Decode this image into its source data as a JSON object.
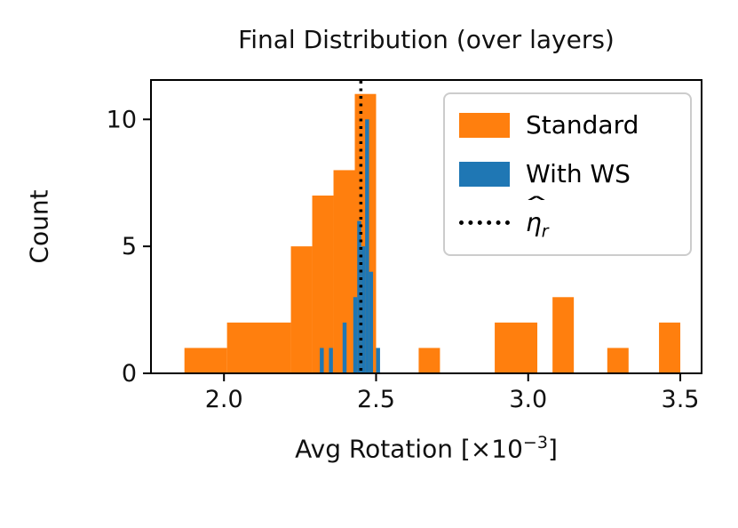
{
  "chart_data": {
    "type": "histogram",
    "title": "Final Distribution (over layers)",
    "ylabel": "Count",
    "xlabel": {
      "full": "Avg Rotation [×10⁻³]",
      "pre": "Avg Rotation [×10",
      "sup": "−3",
      "post": "]"
    },
    "xlim": [
      1.76,
      3.57
    ],
    "ylim": [
      0,
      11.55
    ],
    "x_ticks": [
      2.0,
      2.5,
      3.0,
      3.5
    ],
    "x_tick_labels": [
      "2.0",
      "2.5",
      "3.0",
      "3.5"
    ],
    "y_ticks": [
      0,
      5,
      10
    ],
    "y_tick_labels": [
      "0",
      "5",
      "10"
    ],
    "grid": false,
    "legend_position": "upper right",
    "series": [
      {
        "name": "Standard",
        "color": "#ff7f0e",
        "bars": [
          {
            "x0": 1.87,
            "x1": 2.01,
            "h": 1
          },
          {
            "x0": 2.01,
            "x1": 2.22,
            "h": 2
          },
          {
            "x0": 2.22,
            "x1": 2.29,
            "h": 5
          },
          {
            "x0": 2.29,
            "x1": 2.36,
            "h": 7
          },
          {
            "x0": 2.36,
            "x1": 2.43,
            "h": 8
          },
          {
            "x0": 2.43,
            "x1": 2.5,
            "h": 11
          },
          {
            "x0": 2.64,
            "x1": 2.71,
            "h": 1
          },
          {
            "x0": 2.89,
            "x1": 3.03,
            "h": 2
          },
          {
            "x0": 3.08,
            "x1": 3.15,
            "h": 3
          },
          {
            "x0": 3.26,
            "x1": 3.33,
            "h": 1
          },
          {
            "x0": 3.43,
            "x1": 3.5,
            "h": 2
          }
        ]
      },
      {
        "name": "With WS",
        "color": "#1f77b4",
        "bars": [
          {
            "x0": 2.315,
            "x1": 2.328,
            "h": 1
          },
          {
            "x0": 2.345,
            "x1": 2.358,
            "h": 1
          },
          {
            "x0": 2.39,
            "x1": 2.403,
            "h": 2
          },
          {
            "x0": 2.425,
            "x1": 2.438,
            "h": 3
          },
          {
            "x0": 2.438,
            "x1": 2.451,
            "h": 6
          },
          {
            "x0": 2.451,
            "x1": 2.464,
            "h": 5
          },
          {
            "x0": 2.464,
            "x1": 2.477,
            "h": 10
          },
          {
            "x0": 2.477,
            "x1": 2.49,
            "h": 4
          },
          {
            "x0": 2.5,
            "x1": 2.513,
            "h": 1
          }
        ]
      }
    ],
    "vline": {
      "x": 2.45,
      "color": "#000000",
      "style": "dotted",
      "label": "η̂ᵣ",
      "eta": "η",
      "hat": "ˆ",
      "sub": "r"
    }
  }
}
